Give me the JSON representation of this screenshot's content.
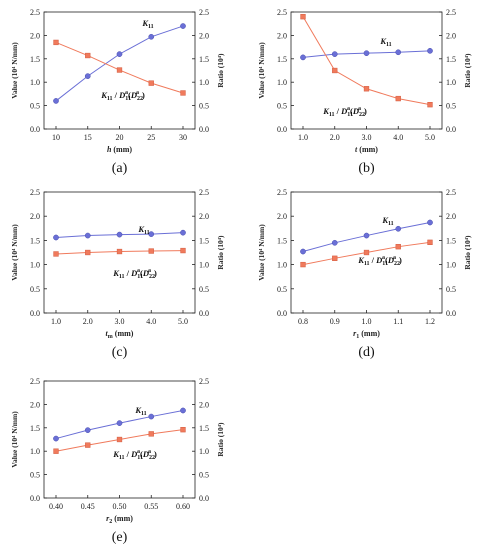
{
  "colors": {
    "k_series": "#6A6FD6",
    "ratio_series": "#F07A5C"
  },
  "chart_data": [
    {
      "type": "line",
      "panel": "(a)",
      "x": [
        10,
        15,
        20,
        25,
        30
      ],
      "xticks": [
        "10",
        "15",
        "20",
        "25",
        "30"
      ],
      "xlabel_main": "h",
      "xlabel_unit": " (mm)",
      "ylabel_left": "Value (10⁴ N/mm)",
      "ylabel_right": "Ratio (10⁴)",
      "ylim": [
        0,
        2.5
      ],
      "yticks": [
        "0.0",
        "0.5",
        "1.0",
        "1.5",
        "2.0",
        "2.5"
      ],
      "series": [
        {
          "name": "K₁₁",
          "values": [
            0.6,
            1.13,
            1.6,
            1.97,
            2.2
          ]
        },
        {
          "name": "K₁₁ / D₁₁ᵃ(Dᵃ₂₂)",
          "values": [
            1.85,
            1.57,
            1.26,
            0.98,
            0.77
          ]
        }
      ]
    },
    {
      "type": "line",
      "panel": "(b)",
      "x": [
        1.0,
        2.0,
        3.0,
        4.0,
        5.0
      ],
      "xticks": [
        "1.0",
        "2.0",
        "3.0",
        "4.0",
        "5.0"
      ],
      "xlabel_main": "t",
      "xlabel_unit": " (mm)",
      "ylabel_left": "Value (10⁴ N/mm)",
      "ylabel_right": "Ratio (10⁴)",
      "ylim": [
        0,
        2.5
      ],
      "yticks": [
        "0.0",
        "0.5",
        "1.0",
        "1.5",
        "2.0",
        "2.5"
      ],
      "series": [
        {
          "name": "K₁₁",
          "values": [
            1.53,
            1.6,
            1.62,
            1.64,
            1.67
          ]
        },
        {
          "name": "K₁₁ / D₁₁ᵃ(Dᵃ₂₂)",
          "values": [
            2.4,
            1.25,
            0.86,
            0.65,
            0.52
          ]
        }
      ]
    },
    {
      "type": "line",
      "panel": "(c)",
      "x": [
        1.0,
        2.0,
        3.0,
        4.0,
        5.0
      ],
      "xticks": [
        "1.0",
        "2.0",
        "3.0",
        "4.0",
        "5.0"
      ],
      "xlabel_main": "t",
      "xlabel_sub": "m",
      "xlabel_unit": " (mm)",
      "ylabel_left": "Value (10⁴ N/mm)",
      "ylabel_right": "Ratio (10⁴)",
      "ylim": [
        0,
        2.5
      ],
      "yticks": [
        "0.0",
        "0.5",
        "1.0",
        "1.5",
        "2.0",
        "2.5"
      ],
      "series": [
        {
          "name": "K₁₁",
          "values": [
            1.56,
            1.6,
            1.62,
            1.63,
            1.66
          ]
        },
        {
          "name": "K₁₁ / D₁₁ᵃ(Dᵃ₂₂)",
          "values": [
            1.22,
            1.25,
            1.27,
            1.28,
            1.29
          ]
        }
      ]
    },
    {
      "type": "line",
      "panel": "(d)",
      "x": [
        0.8,
        0.9,
        1.0,
        1.1,
        1.2
      ],
      "xticks": [
        "0.8",
        "0.9",
        "1.0",
        "1.1",
        "1.2"
      ],
      "xlabel_main": "r",
      "xlabel_sub": "1",
      "xlabel_unit": " (mm)",
      "ylabel_left": "Value (10⁴ N/mm)",
      "ylabel_right": "Ratio (10⁴)",
      "ylim": [
        0,
        2.5
      ],
      "yticks": [
        "0.0",
        "0.5",
        "1.0",
        "1.5",
        "2.0",
        "2.5"
      ],
      "series": [
        {
          "name": "K₁₁",
          "values": [
            1.27,
            1.45,
            1.6,
            1.74,
            1.87
          ]
        },
        {
          "name": "K₁₁ / D₁₁ᵃ(Dᵃ₂₂)",
          "values": [
            1.0,
            1.13,
            1.25,
            1.37,
            1.46
          ]
        }
      ]
    },
    {
      "type": "line",
      "panel": "(e)",
      "x": [
        0.4,
        0.45,
        0.5,
        0.55,
        0.6
      ],
      "xticks": [
        "0.40",
        "0.45",
        "0.50",
        "0.55",
        "0.60"
      ],
      "xlabel_main": "r",
      "xlabel_sub": "2",
      "xlabel_unit": " (mm)",
      "ylabel_left": "Value (10⁴ N/mm)",
      "ylabel_right": "Ratio (10⁴)",
      "ylim": [
        0,
        2.5
      ],
      "yticks": [
        "0.0",
        "0.5",
        "1.0",
        "1.5",
        "2.0",
        "2.5"
      ],
      "series": [
        {
          "name": "K₁₁",
          "values": [
            1.27,
            1.45,
            1.6,
            1.74,
            1.87
          ]
        },
        {
          "name": "K₁₁ / D₁₁ᵃ(Dᵃ₂₂)",
          "values": [
            1.0,
            1.13,
            1.25,
            1.37,
            1.46
          ]
        }
      ]
    }
  ]
}
